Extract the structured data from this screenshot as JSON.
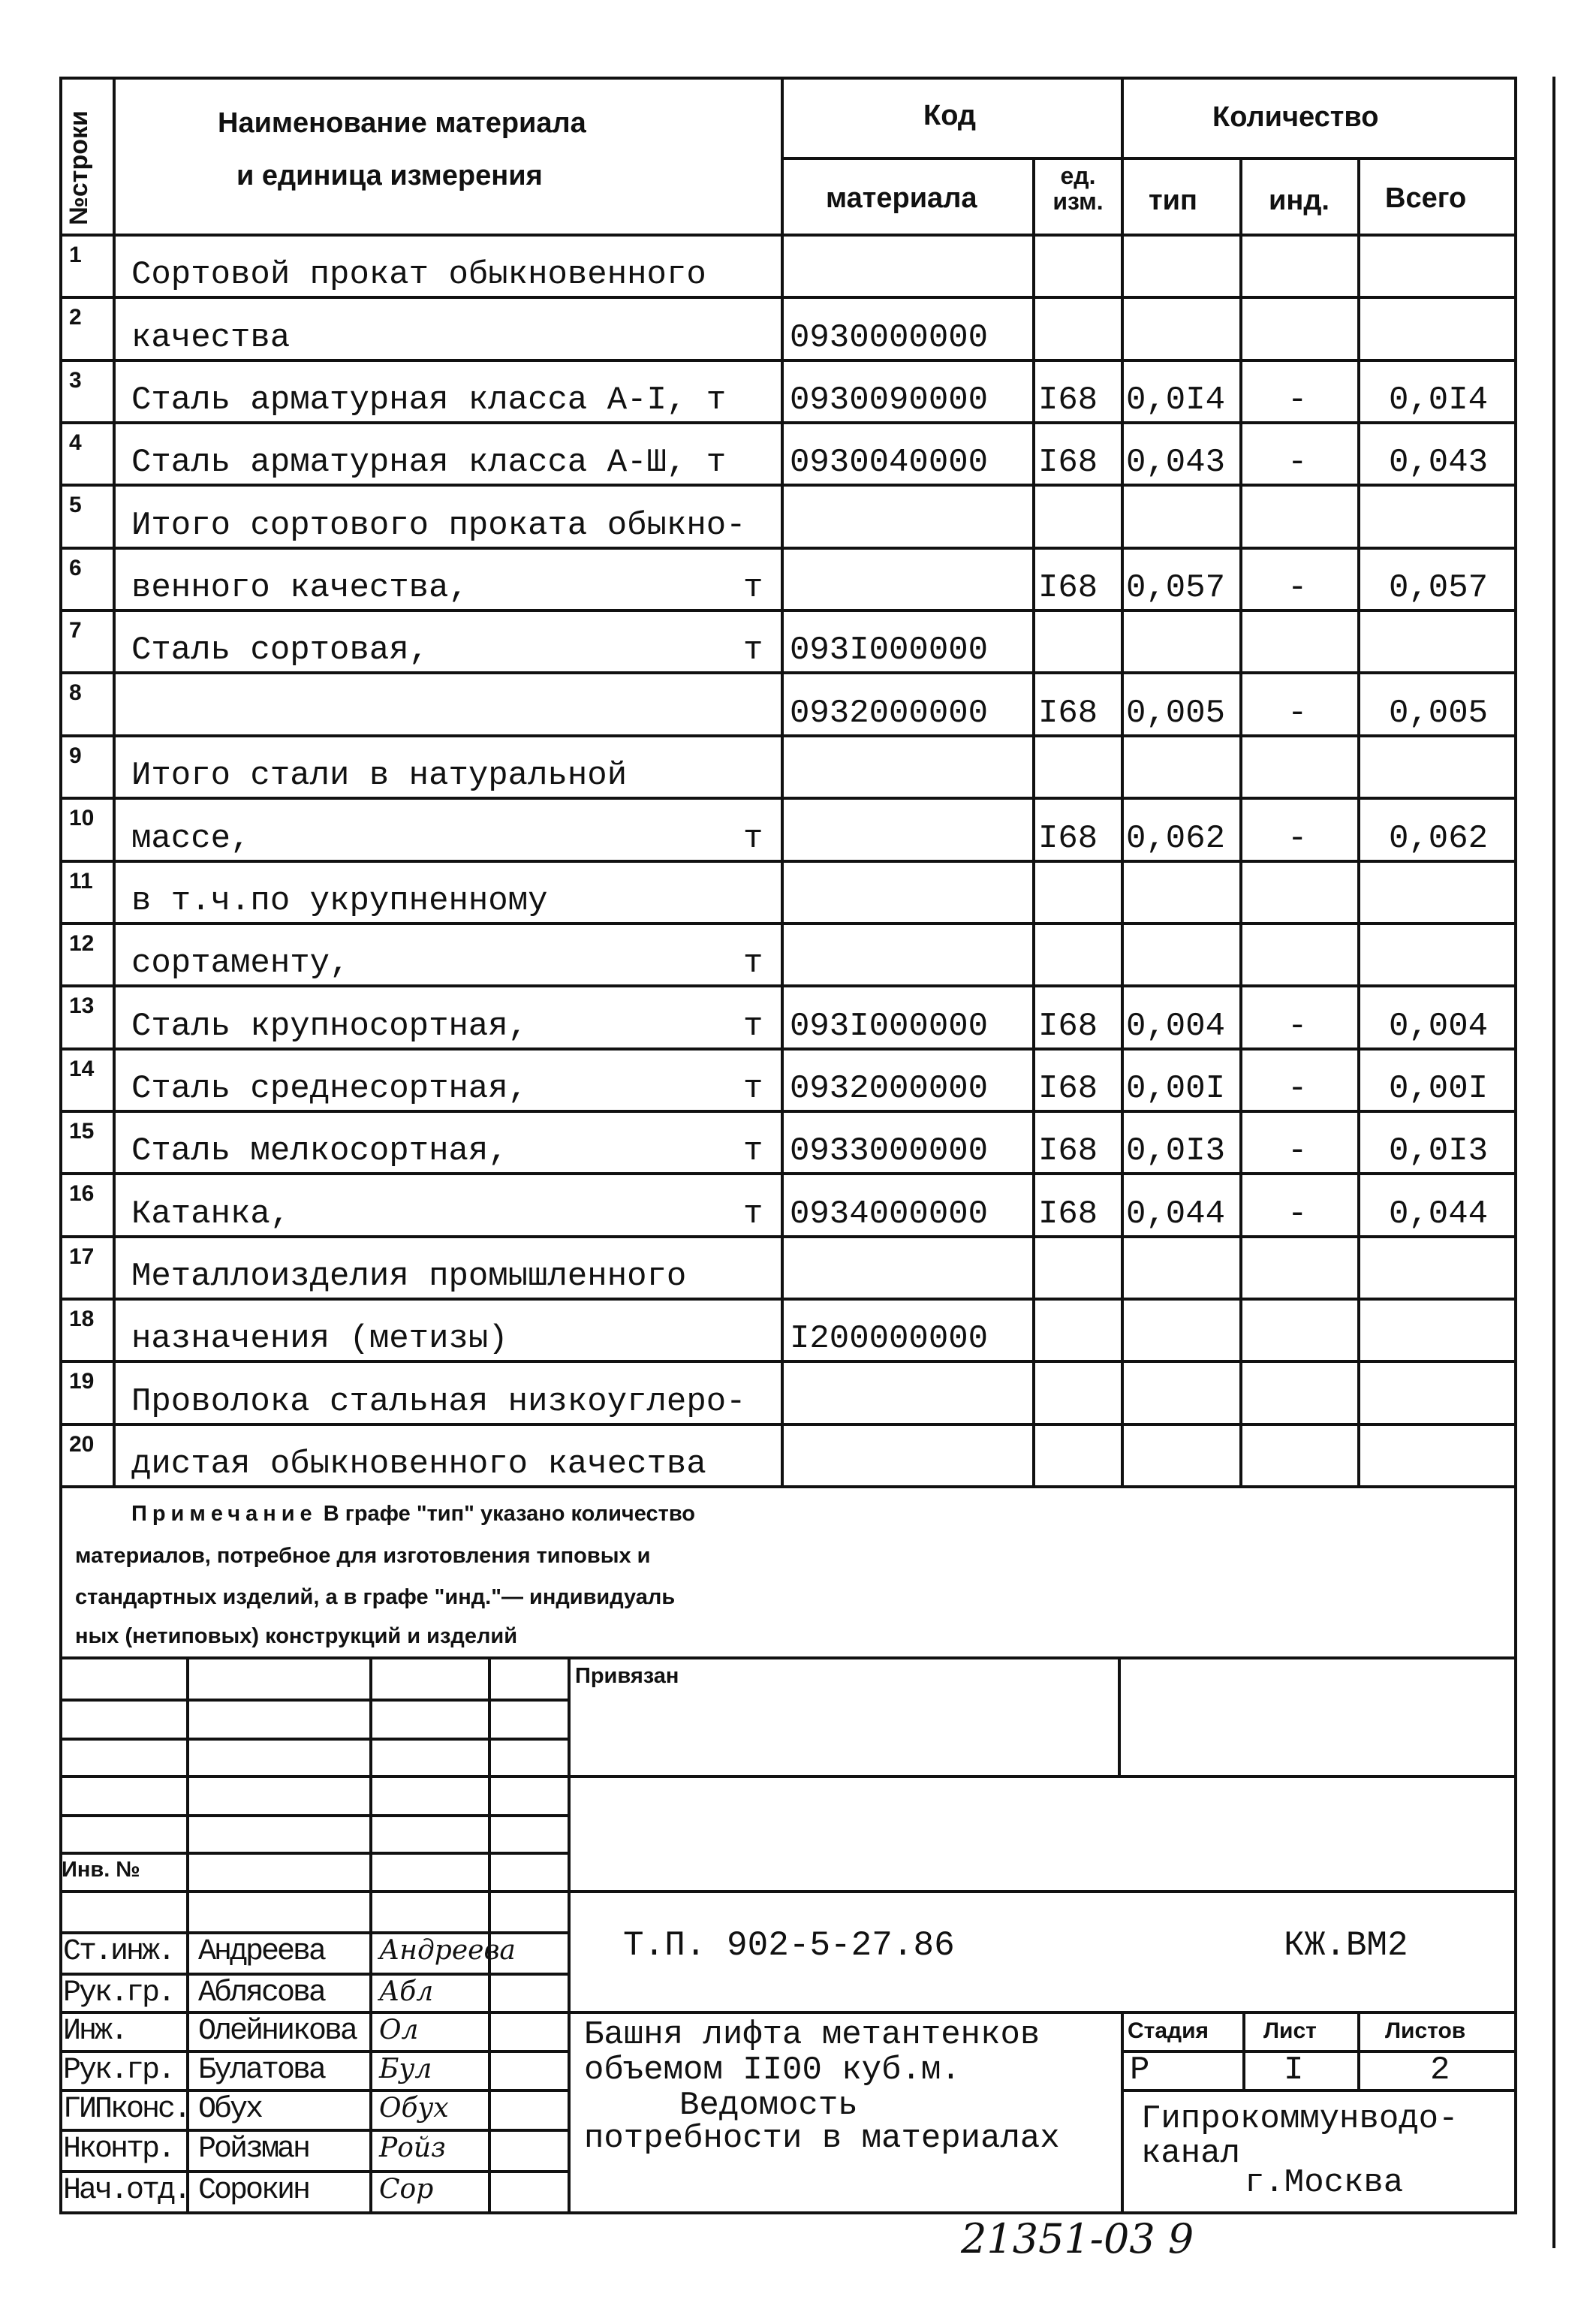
{
  "header": {
    "row_no": "№строки",
    "name_line1": "Наименование материала",
    "name_line2": "и единица измерения",
    "code": "Код",
    "code_material": "материала",
    "code_unit": "ед. изм.",
    "quantity": "Количество",
    "qty_type": "тип",
    "qty_ind": "инд.",
    "qty_total": "Всего"
  },
  "rows": [
    {
      "n": "1",
      "name": "Сортовой прокат обыкновенного",
      "unit": "",
      "code": "",
      "ed": "",
      "tip": "",
      "ind": "",
      "total": ""
    },
    {
      "n": "2",
      "name": "качества",
      "unit": "",
      "code": "0930000000",
      "ed": "",
      "tip": "",
      "ind": "",
      "total": ""
    },
    {
      "n": "3",
      "name": "Сталь арматурная класса А-I, т",
      "unit": "",
      "code": "0930090000",
      "ed": "I68",
      "tip": "0,0I4",
      "ind": "-",
      "total": "0,0I4"
    },
    {
      "n": "4",
      "name": "Сталь арматурная класса А-Ш, т",
      "unit": "",
      "code": "0930040000",
      "ed": "I68",
      "tip": "0,043",
      "ind": "-",
      "total": "0,043"
    },
    {
      "n": "5",
      "name": "Итого сортового проката обыкно-",
      "unit": "",
      "code": "",
      "ed": "",
      "tip": "",
      "ind": "",
      "total": ""
    },
    {
      "n": "6",
      "name": "венного качества,",
      "unit": "т",
      "code": "",
      "ed": "I68",
      "tip": "0,057",
      "ind": "-",
      "total": "0,057"
    },
    {
      "n": "7",
      "name": "Сталь сортовая,",
      "unit": "т",
      "code": "093I000000",
      "ed": "",
      "tip": "",
      "ind": "",
      "total": ""
    },
    {
      "n": "8",
      "name": "",
      "unit": "",
      "code": "0932000000",
      "ed": "I68",
      "tip": "0,005",
      "ind": "-",
      "total": "0,005"
    },
    {
      "n": "9",
      "name": "Итого стали в натуральной",
      "unit": "",
      "code": "",
      "ed": "",
      "tip": "",
      "ind": "",
      "total": ""
    },
    {
      "n": "10",
      "name": "массе,",
      "unit": "т",
      "code": "",
      "ed": "I68",
      "tip": "0,062",
      "ind": "-",
      "total": "0,062"
    },
    {
      "n": "11",
      "name": "в т.ч.по укрупненному",
      "unit": "",
      "code": "",
      "ed": "",
      "tip": "",
      "ind": "",
      "total": ""
    },
    {
      "n": "12",
      "name": "сортаменту,",
      "unit": "т",
      "code": "",
      "ed": "",
      "tip": "",
      "ind": "",
      "total": ""
    },
    {
      "n": "13",
      "name": "Сталь крупносортная,",
      "unit": "т",
      "code": "093I000000",
      "ed": "I68",
      "tip": "0,004",
      "ind": "-",
      "total": "0,004"
    },
    {
      "n": "14",
      "name": "Сталь среднесортная,",
      "unit": "т",
      "code": "0932000000",
      "ed": "I68",
      "tip": "0,00I",
      "ind": "-",
      "total": "0,00I"
    },
    {
      "n": "15",
      "name": "Сталь мелкосортная,",
      "unit": "т",
      "code": "0933000000",
      "ed": "I68",
      "tip": "0,0I3",
      "ind": "-",
      "total": "0,0I3"
    },
    {
      "n": "16",
      "name": "Катанка,",
      "unit": "т",
      "code": "0934000000",
      "ed": "I68",
      "tip": "0,044",
      "ind": "-",
      "total": "0,044"
    },
    {
      "n": "17",
      "name": "Металлоизделия промышленного",
      "unit": "",
      "code": "",
      "ed": "",
      "tip": "",
      "ind": "",
      "total": ""
    },
    {
      "n": "18",
      "name": "назначения (метизы)",
      "unit": "",
      "code": "I200000000",
      "ed": "",
      "tip": "",
      "ind": "",
      "total": ""
    },
    {
      "n": "19",
      "name": "Проволока стальная низкоуглеро-",
      "unit": "",
      "code": "",
      "ed": "",
      "tip": "",
      "ind": "",
      "total": ""
    },
    {
      "n": "20",
      "name": "дистая обыкновенного качества",
      "unit": "",
      "code": "",
      "ed": "",
      "tip": "",
      "ind": "",
      "total": ""
    }
  ],
  "note": {
    "label": "Примечание",
    "line1": "В графе \"тип\" указано количество",
    "line2": "материалов, потребное для изготовления типовых и",
    "line3": "стандартных изделий, а в графе \"инд.\"— индивидуаль",
    "line4": "ных (нетиповых) конструкций и изделий"
  },
  "stamp": {
    "attached": "Привязан",
    "inv_no": "Инв. №",
    "doc_number": "Т.П.  902-5-27.86",
    "doc_code": "КЖ.ВМ2",
    "title_line1": "Башня лифта метантенков",
    "title_line2": "объемом II00 куб.м.",
    "title_line3": "Ведомость",
    "title_line4": "потребности в материалах",
    "stage_label": "Стадия",
    "sheet_label": "Лист",
    "sheets_label": "Листов",
    "stage": "Р",
    "sheet": "I",
    "sheets": "2",
    "org_line1": "Гипрокоммунводо-",
    "org_line2": "канал",
    "org_line3": "г.Москва",
    "signers": [
      {
        "role": "Ст.инж.",
        "name": "Андреева",
        "sign": "Андреева"
      },
      {
        "role": "Рук.гр.",
        "name": "Аблясова",
        "sign": "Абл"
      },
      {
        "role": "Инж.",
        "name": "Олейникова",
        "sign": "Ол"
      },
      {
        "role": "Рук.гр.",
        "name": "Булатова",
        "sign": "Бул"
      },
      {
        "role": "ГИПконс.",
        "name": "Обух",
        "sign": "Обух"
      },
      {
        "role": "Нконтр.",
        "name": "Ройзман",
        "sign": "Ройз"
      },
      {
        "role": "Нач.отд.",
        "name": "Сорокин",
        "sign": "Сор"
      }
    ]
  },
  "footer_handwritten": "21351-03  9"
}
